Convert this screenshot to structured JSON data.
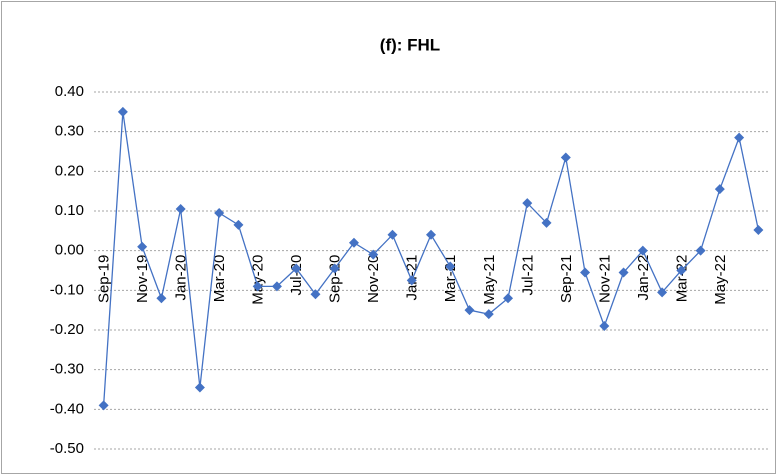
{
  "chart_data": {
    "type": "line",
    "title": "(f): FHL",
    "categories": [
      "Sep-19",
      null,
      "Nov-19",
      null,
      "Jan-20",
      null,
      "Mar-20",
      null,
      "May-20",
      null,
      "Jul-20",
      null,
      "Sep-20",
      null,
      "Nov-20",
      null,
      "Jan-21",
      null,
      "Mar-21",
      null,
      "May-21",
      null,
      "Jul-21",
      null,
      "Sep-21",
      null,
      "Nov-21",
      null,
      "Jan-22",
      null,
      "Mar-22",
      null,
      "May-22",
      null,
      null
    ],
    "values": [
      -0.39,
      0.35,
      0.01,
      -0.12,
      0.105,
      -0.345,
      0.095,
      0.065,
      -0.09,
      -0.09,
      -0.045,
      -0.11,
      -0.045,
      0.02,
      -0.01,
      0.04,
      -0.075,
      0.04,
      -0.04,
      -0.15,
      -0.16,
      -0.12,
      0.12,
      0.07,
      0.235,
      -0.055,
      -0.19,
      -0.055,
      0.0,
      -0.105,
      -0.05,
      0.0,
      0.155,
      0.285,
      0.052
    ],
    "color": "#4472c4",
    "ylim": [
      -0.5,
      0.4
    ],
    "yticks": [
      {
        "value": -0.5,
        "label": "-0.50"
      },
      {
        "value": -0.4,
        "label": "-0.40"
      },
      {
        "value": -0.3,
        "label": "-0.30"
      },
      {
        "value": -0.2,
        "label": "-0.20"
      },
      {
        "value": -0.1,
        "label": "-0.10"
      },
      {
        "value": 0,
        "label": "0.00"
      },
      {
        "value": 0.1,
        "label": "0.10"
      },
      {
        "value": 0.2,
        "label": "0.20"
      },
      {
        "value": 0.3,
        "label": "0.30"
      },
      {
        "value": 0.4,
        "label": "0.40"
      }
    ],
    "grid": true
  }
}
